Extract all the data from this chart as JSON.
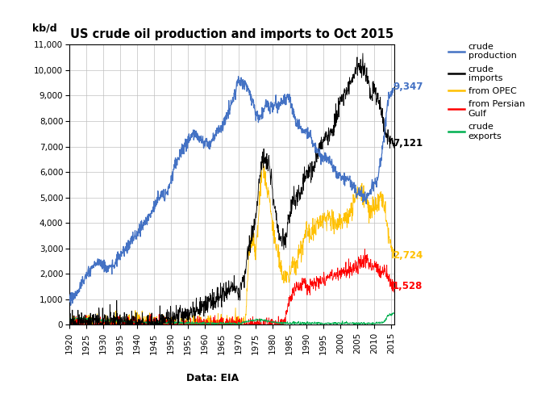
{
  "title": "US crude oil production and imports to Oct 2015",
  "ylabel": "kb/d",
  "xlabel_note": "Data: EIA",
  "ylim": [
    0,
    11000
  ],
  "yticks": [
    0,
    1000,
    2000,
    3000,
    4000,
    5000,
    6000,
    7000,
    8000,
    9000,
    10000,
    11000
  ],
  "xlim_start": 1920,
  "xlim_end": 2016,
  "xticks": [
    1920,
    1925,
    1930,
    1935,
    1940,
    1945,
    1950,
    1955,
    1960,
    1965,
    1970,
    1975,
    1980,
    1985,
    1990,
    1995,
    2000,
    2005,
    2010,
    2015
  ],
  "colors": {
    "production": "#4472C4",
    "imports": "#000000",
    "opec": "#FFC000",
    "persian": "#FF0000",
    "exports": "#00B050"
  },
  "end_labels": {
    "production_val": "9,347",
    "production_y": 9347,
    "imports_val": "7,121",
    "imports_y": 7121,
    "opec_val": "2,724",
    "opec_y": 2724,
    "persian_val": "1,528",
    "persian_y": 1528
  },
  "background": "#FFFFFF",
  "grid_color": "#C0C0C0",
  "legend_items": [
    {
      "label": "crude\nproduction",
      "color": "#4472C4"
    },
    {
      "label": "crude\nimports",
      "color": "#000000"
    },
    {
      "label": "from OPEC",
      "color": "#FFC000"
    },
    {
      "label": "from Persian\nGulf",
      "color": "#FF0000"
    },
    {
      "label": "crude\nexports",
      "color": "#00B050"
    }
  ]
}
